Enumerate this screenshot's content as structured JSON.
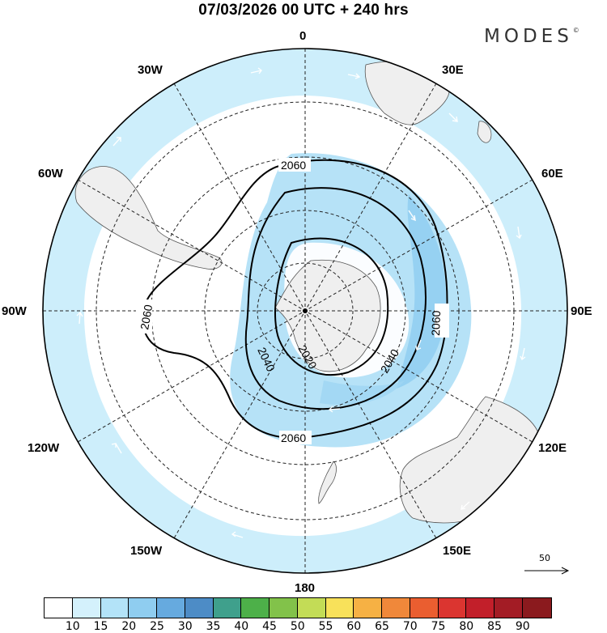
{
  "title": "07/03/2026  00 UTC  + 240 hrs",
  "brand": {
    "name": "MODES",
    "mark": "©"
  },
  "lon_labels": {
    "lon_0": "0",
    "lon_30e": "30E",
    "lon_60e": "60E",
    "lon_90e": "90E",
    "lon_120e": "120E",
    "lon_150e": "150E",
    "lon_180": "180",
    "lon_150w": "150W",
    "lon_120w": "120W",
    "lon_90w": "90W",
    "lon_60w": "60W",
    "lon_30w": "30W"
  },
  "contours": {
    "c2020": "2020",
    "c2040": "2040",
    "c2060": "2060"
  },
  "contour_labels": [
    {
      "id": "c2060_top",
      "text": "2060"
    },
    {
      "id": "c2060_left",
      "text": "2060"
    },
    {
      "id": "c2060_right",
      "text": "2060"
    },
    {
      "id": "c2060_bottom",
      "text": "2060"
    },
    {
      "id": "c2040_left",
      "text": "2040"
    },
    {
      "id": "c2040_right",
      "text": "2040"
    },
    {
      "id": "c2020",
      "text": "2020"
    }
  ],
  "reference_vector": {
    "label": "50"
  },
  "colorbar": {
    "colors": [
      "#ffffff",
      "#d4f1fc",
      "#b3e3f8",
      "#8fcdf0",
      "#66aadf",
      "#4d8cc6",
      "#3fa08c",
      "#4db049",
      "#82c24a",
      "#c3dc56",
      "#f8e15a",
      "#f6b144",
      "#f0883a",
      "#ea5e30",
      "#db3530",
      "#c21f2a",
      "#a31c25",
      "#8b1a1e"
    ],
    "ticks": [
      "10",
      "15",
      "20",
      "25",
      "30",
      "35",
      "40",
      "45",
      "50",
      "55",
      "60",
      "65",
      "70",
      "75",
      "80",
      "85",
      "90"
    ]
  }
}
